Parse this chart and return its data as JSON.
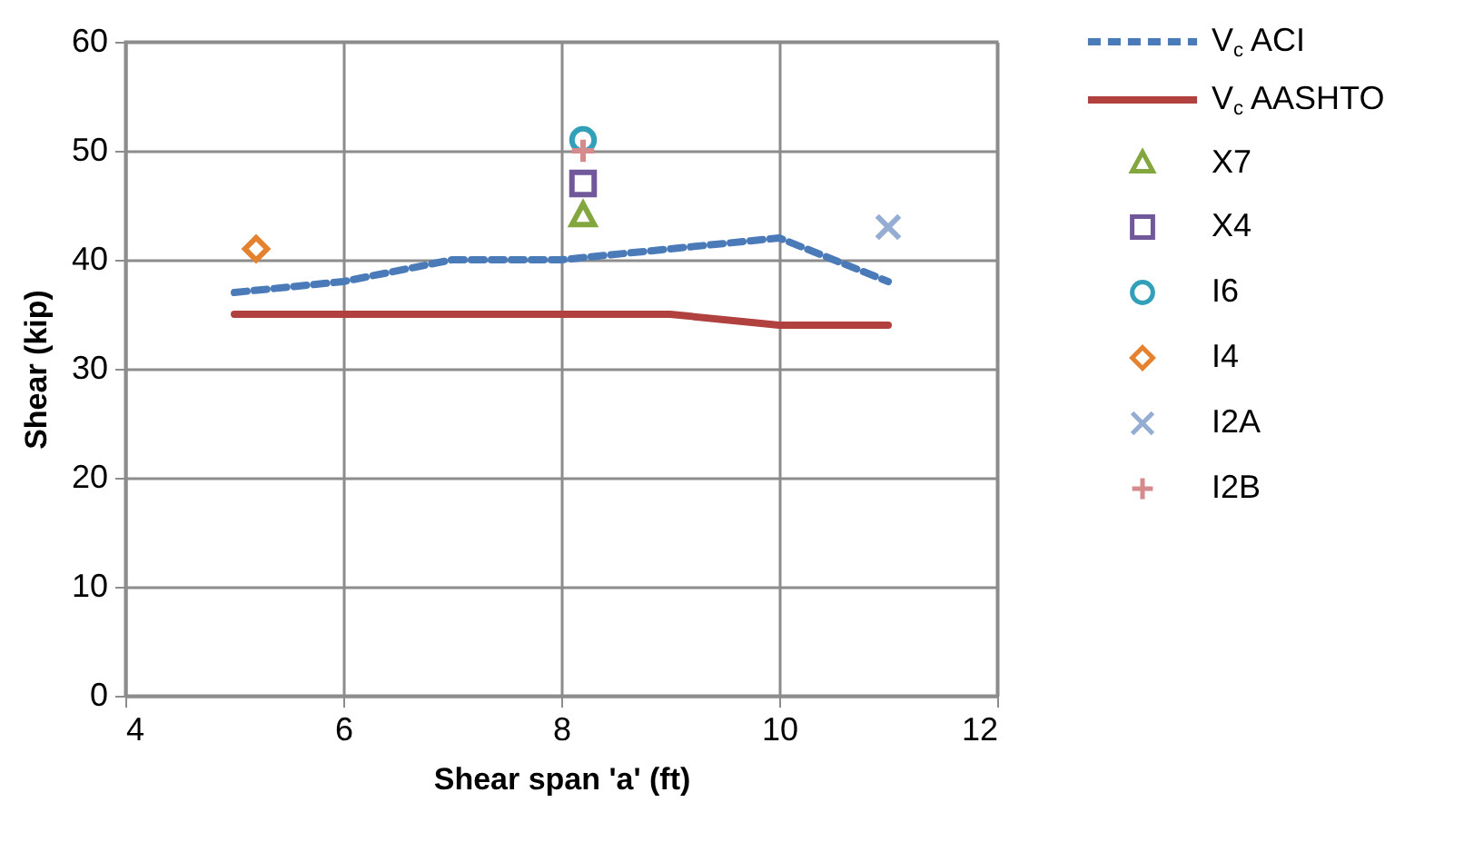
{
  "chart_data": {
    "type": "line",
    "xlabel": "Shear span 'a' (ft)",
    "ylabel": "Shear (kip)",
    "xlim": [
      4,
      12
    ],
    "xticks": [
      4,
      6,
      8,
      10,
      12
    ],
    "ylim": [
      0,
      60
    ],
    "yticks": [
      0,
      10,
      20,
      30,
      40,
      50,
      60
    ],
    "grid": true,
    "legend": "right",
    "series": [
      {
        "name": "V$_{c}$ ACI",
        "type": "line",
        "color": "#4a7ab8",
        "line_style": "dashed",
        "marker": "none",
        "x": [
          5,
          6,
          7,
          8,
          9,
          10,
          11
        ],
        "values": [
          37,
          38,
          40,
          40,
          41,
          42,
          38
        ]
      },
      {
        "name": "V$_{c}$ AASHTO",
        "type": "line",
        "color": "#b0413e",
        "line_style": "solid",
        "marker": "none",
        "x": [
          5,
          6,
          7,
          8,
          9,
          10,
          11
        ],
        "values": [
          35,
          35,
          35,
          35,
          35,
          34,
          34
        ]
      },
      {
        "name": "X7",
        "type": "scatter",
        "color": "#84a63f",
        "marker": "triangle",
        "x": [
          8.2
        ],
        "values": [
          44
        ]
      },
      {
        "name": "X4",
        "type": "scatter",
        "color": "#71589a",
        "marker": "square",
        "x": [
          8.2
        ],
        "values": [
          47
        ]
      },
      {
        "name": "I6",
        "type": "scatter",
        "color": "#31a0b8",
        "marker": "circle",
        "x": [
          8.2
        ],
        "values": [
          51
        ]
      },
      {
        "name": "I4",
        "type": "scatter",
        "color": "#e5822f",
        "marker": "diamond",
        "x": [
          5.2
        ],
        "values": [
          41
        ]
      },
      {
        "name": "I2A",
        "type": "scatter",
        "color": "#95acd3",
        "marker": "cross",
        "x": [
          11
        ],
        "values": [
          43
        ]
      },
      {
        "name": "I2B",
        "type": "scatter",
        "color": "#d58a8c",
        "marker": "plus",
        "x": [
          8.2
        ],
        "values": [
          50
        ]
      }
    ]
  }
}
